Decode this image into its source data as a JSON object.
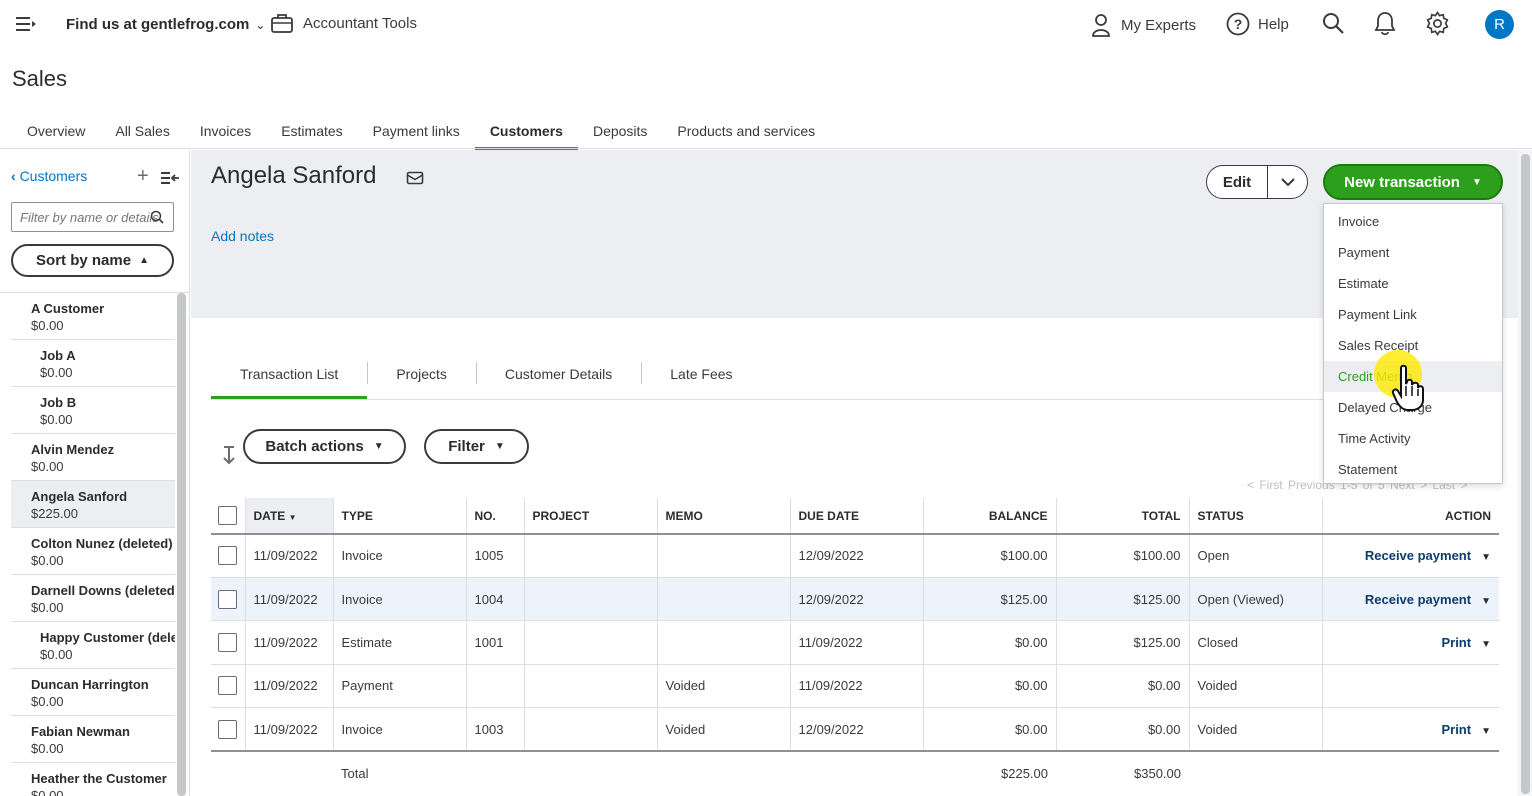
{
  "topbar": {
    "company": "Find us at gentlefrog.com",
    "accountant_tools": "Accountant Tools",
    "my_experts": "My Experts",
    "help": "Help",
    "avatar_initial": "R"
  },
  "page": {
    "title": "Sales"
  },
  "main_tabs": [
    {
      "label": "Overview",
      "active": false
    },
    {
      "label": "All Sales",
      "active": false
    },
    {
      "label": "Invoices",
      "active": false
    },
    {
      "label": "Estimates",
      "active": false
    },
    {
      "label": "Payment links",
      "active": false
    },
    {
      "label": "Customers",
      "active": true
    },
    {
      "label": "Deposits",
      "active": false
    },
    {
      "label": "Products and services",
      "active": false
    }
  ],
  "sidebar": {
    "back_label": "Customers",
    "filter_placeholder": "Filter by name or details",
    "sort_label": "Sort by name",
    "customers": [
      {
        "name": "A Customer",
        "balance": "$0.00",
        "sub": false,
        "selected": false
      },
      {
        "name": "Job A",
        "balance": "$0.00",
        "sub": true,
        "selected": false
      },
      {
        "name": "Job B",
        "balance": "$0.00",
        "sub": true,
        "selected": false
      },
      {
        "name": "Alvin Mendez",
        "balance": "$0.00",
        "sub": false,
        "selected": false
      },
      {
        "name": "Angela Sanford",
        "balance": "$225.00",
        "sub": false,
        "selected": true
      },
      {
        "name": "Colton Nunez (deleted)",
        "balance": "$0.00",
        "sub": false,
        "selected": false
      },
      {
        "name": "Darnell Downs (deleted)",
        "balance": "$0.00",
        "sub": false,
        "selected": false
      },
      {
        "name": "Happy Customer (delet",
        "balance": "$0.00",
        "sub": true,
        "selected": false
      },
      {
        "name": "Duncan Harrington",
        "balance": "$0.00",
        "sub": false,
        "selected": false
      },
      {
        "name": "Fabian Newman",
        "balance": "$0.00",
        "sub": false,
        "selected": false
      },
      {
        "name": "Heather the Customer",
        "balance": "$0.00",
        "sub": false,
        "selected": false
      }
    ]
  },
  "customer": {
    "name": "Angela Sanford",
    "add_notes": "Add notes",
    "edit_label": "Edit",
    "new_transaction_label": "New transaction"
  },
  "new_transaction_menu": [
    {
      "label": "Invoice",
      "hover": false
    },
    {
      "label": "Payment",
      "hover": false
    },
    {
      "label": "Estimate",
      "hover": false
    },
    {
      "label": "Payment Link",
      "hover": false
    },
    {
      "label": "Sales Receipt",
      "hover": false
    },
    {
      "label": "Credit Memo",
      "hover": true
    },
    {
      "label": "Delayed Charge",
      "hover": false
    },
    {
      "label": "Time Activity",
      "hover": false
    },
    {
      "label": "Statement",
      "hover": false
    }
  ],
  "sub_tabs": [
    {
      "label": "Transaction List",
      "active": true
    },
    {
      "label": "Projects",
      "active": false
    },
    {
      "label": "Customer Details",
      "active": false
    },
    {
      "label": "Late Fees",
      "active": false
    }
  ],
  "toolbar": {
    "batch_actions": "Batch actions",
    "filter": "Filter",
    "pager": "< First   Previous   1-5 of 5   Next >   Last >"
  },
  "table": {
    "columns": [
      "DATE",
      "TYPE",
      "NO.",
      "PROJECT",
      "MEMO",
      "DUE DATE",
      "BALANCE",
      "TOTAL",
      "STATUS",
      "ACTION"
    ],
    "rows": [
      {
        "date": "11/09/2022",
        "type": "Invoice",
        "no": "1005",
        "project": "",
        "memo": "",
        "due": "12/09/2022",
        "balance": "$100.00",
        "total": "$100.00",
        "status": "Open",
        "status_kind": "normal",
        "action": "Receive payment",
        "highlight": false
      },
      {
        "date": "11/09/2022",
        "type": "Invoice",
        "no": "1004",
        "project": "",
        "memo": "",
        "due": "12/09/2022",
        "balance": "$125.00",
        "total": "$125.00",
        "status": "Open (Viewed)",
        "status_kind": "normal",
        "action": "Receive payment",
        "highlight": true
      },
      {
        "date": "11/09/2022",
        "type": "Estimate",
        "no": "1001",
        "project": "",
        "memo": "",
        "due": "11/09/2022",
        "balance": "$0.00",
        "total": "$125.00",
        "status": "Closed",
        "status_kind": "closed",
        "action": "Print",
        "highlight": false
      },
      {
        "date": "11/09/2022",
        "type": "Payment",
        "no": "",
        "project": "",
        "memo": "Voided",
        "due": "11/09/2022",
        "balance": "$0.00",
        "total": "$0.00",
        "status": "Voided",
        "status_kind": "normal",
        "action": "",
        "highlight": false
      },
      {
        "date": "11/09/2022",
        "type": "Invoice",
        "no": "1003",
        "project": "",
        "memo": "Voided",
        "due": "12/09/2022",
        "balance": "$0.00",
        "total": "$0.00",
        "status": "Voided",
        "status_kind": "normal",
        "action": "Print",
        "highlight": false
      }
    ],
    "total_label": "Total",
    "total_balance": "$225.00",
    "total_total": "$350.00"
  },
  "colors": {
    "accent_green": "#2ca01c",
    "link_blue": "#0077c5",
    "action_navy": "#0d3c6e"
  }
}
